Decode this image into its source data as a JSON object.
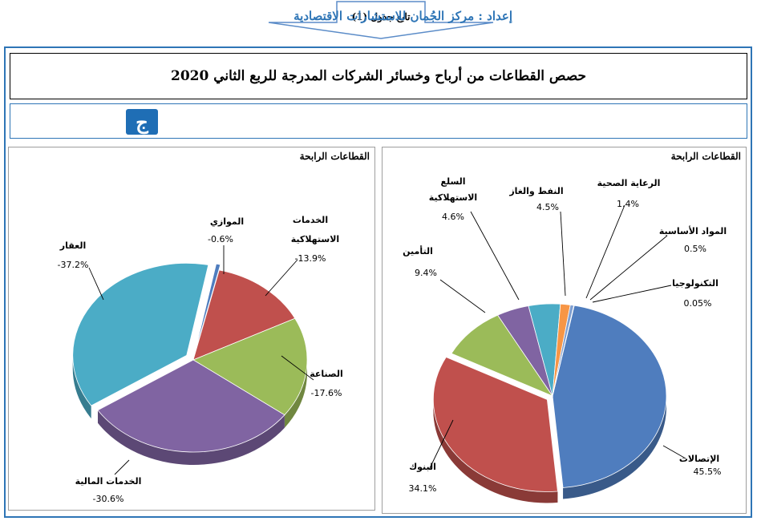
{
  "header": {
    "continuation_label": "تابع جدول (1)",
    "title": "حصص القطاعات من أرباح وخسائر الشركات المدرجة للربع الثاني  2020",
    "prepared_by": "إعداد : مركز الجُمان للاستشارات الاقتصادية",
    "logo_glyph": "ج"
  },
  "colors": {
    "frame": "#2e75b6",
    "blue": "#4f7dbe",
    "red": "#c0504d",
    "green": "#9bbb59",
    "purple": "#8064a2",
    "teal": "#4bacc6",
    "orange": "#f79646",
    "lightblue": "#7f9fd0",
    "pink": "#c080a0"
  },
  "chart_data": [
    {
      "type": "pie",
      "title": "القطاعات الرابحة",
      "series": [
        {
          "name": "الإتصالات",
          "value": 45.5,
          "label": "45.5%",
          "color": "#4f7dbe"
        },
        {
          "name": "البنوك",
          "value": 34.1,
          "label": "34.1%",
          "color": "#c0504d"
        },
        {
          "name": "التأمين",
          "value": 9.4,
          "label": "9.4%",
          "color": "#9bbb59"
        },
        {
          "name": "السلع الاستهلاكية",
          "value": 4.6,
          "label": "4.6%",
          "color": "#8064a2"
        },
        {
          "name": "النفط والغاز",
          "value": 4.5,
          "label": "4.5%",
          "color": "#4bacc6"
        },
        {
          "name": "الرعاية الصحية",
          "value": 1.4,
          "label": "1.4%",
          "color": "#f79646"
        },
        {
          "name": "المواد الأساسية",
          "value": 0.5,
          "label": "0.5%",
          "color": "#7f9fd0"
        },
        {
          "name": "التكنولوجيا",
          "value": 0.05,
          "label": "0.05%",
          "color": "#c080a0"
        }
      ]
    },
    {
      "type": "pie",
      "title": "القطاعات الرابحة",
      "series": [
        {
          "name": "الموازي",
          "value": -0.6,
          "label": "-0.6%",
          "color": "#4f7dbe"
        },
        {
          "name": "الخدمات الاستهلاكية",
          "value": -13.9,
          "label": "-13.9%",
          "color": "#c0504d"
        },
        {
          "name": "الصناعة",
          "value": -17.6,
          "label": "-17.6%",
          "color": "#9bbb59"
        },
        {
          "name": "الخدمات المالية",
          "value": -30.6,
          "label": "-30.6%",
          "color": "#8064a2"
        },
        {
          "name": "العقار",
          "value": -37.2,
          "label": "-37.2%",
          "color": "#4bacc6"
        }
      ]
    }
  ]
}
